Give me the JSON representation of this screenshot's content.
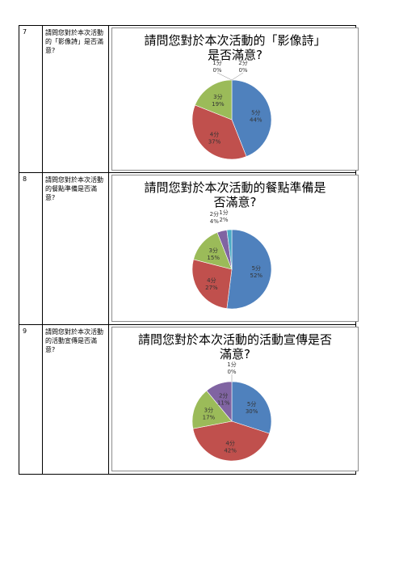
{
  "colors": {
    "5": "#4f81bd",
    "4": "#c0504d",
    "3": "#9bbb59",
    "2": "#8064a2",
    "1": "#4bacc6"
  },
  "rows": [
    {
      "number": "7",
      "question": "請問您對於本次活動的「影像詩」是否滿意?"
    },
    {
      "number": "8",
      "question": "請問您對於本次活動的餐點準備是否滿意?"
    },
    {
      "number": "9",
      "question": "請問您對於本次活動的活動宣傳是否滿意?"
    }
  ],
  "chart_data": [
    {
      "type": "pie",
      "title_line1": "請問您對於本次活動的「影像詩」",
      "title_line2": "是否滿意?",
      "categories": [
        "5分",
        "4分",
        "3分",
        "2分",
        "1分"
      ],
      "values": [
        44,
        37,
        19,
        0,
        0
      ],
      "labels": [
        "44%",
        "37%",
        "19%",
        "0%",
        "0%"
      ]
    },
    {
      "type": "pie",
      "title_line1": "請問您對於本次活動的餐點準備是",
      "title_line2": "否滿意?",
      "categories": [
        "5分",
        "4分",
        "3分",
        "2分",
        "1分"
      ],
      "values": [
        52,
        27,
        15,
        4,
        2
      ],
      "labels": [
        "52%",
        "27%",
        "15%",
        "4%",
        "2%"
      ]
    },
    {
      "type": "pie",
      "title_line1": "請問您對於本次活動的活動宣傳是否",
      "title_line2": "滿意?",
      "categories": [
        "5分",
        "4分",
        "3分",
        "2分",
        "1分"
      ],
      "values": [
        30,
        42,
        17,
        11,
        0
      ],
      "labels": [
        "30%",
        "42%",
        "17%",
        "11%",
        "0%"
      ]
    }
  ]
}
